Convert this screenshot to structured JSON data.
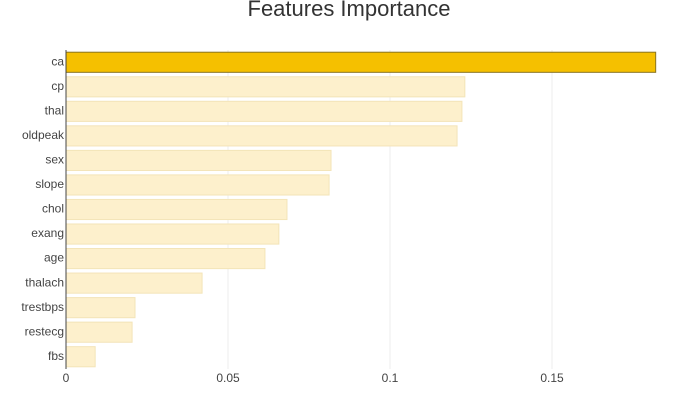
{
  "chart_data": {
    "type": "barh",
    "title": "Features Importance",
    "categories": [
      "ca",
      "cp",
      "thal",
      "oldpeak",
      "sex",
      "slope",
      "chol",
      "exang",
      "age",
      "thalach",
      "trestbps",
      "restecg",
      "fbs"
    ],
    "values": [
      0.182,
      0.1231,
      0.1222,
      0.1207,
      0.0818,
      0.0812,
      0.0682,
      0.0657,
      0.0614,
      0.042,
      0.0213,
      0.0204,
      0.009
    ],
    "colors": [
      "#f5c000",
      "#fdf0cc",
      "#fdf0cc",
      "#fdf0cc",
      "#fdf0cc",
      "#fdf0cc",
      "#fdf0cc",
      "#fdf0cc",
      "#fdf0cc",
      "#fdf0cc",
      "#fdf0cc",
      "#fdf0cc",
      "#fdf0cc"
    ],
    "xlim": [
      0,
      0.1821
    ],
    "xticks": [
      0,
      0.05,
      0.1,
      0.15
    ],
    "grid": true
  }
}
